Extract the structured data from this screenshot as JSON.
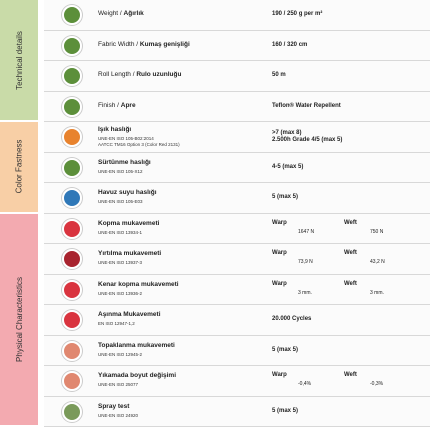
{
  "sections": [
    {
      "title": "Technical details",
      "color": "#c9dba8",
      "rows": [
        {
          "en": "Weight /",
          "tr": "Ağırlık",
          "icon_color": "#5c8f3a",
          "values": [
            "190 / 250 g per m²"
          ]
        },
        {
          "en": "Fabric Width /",
          "tr": "Kumaş genişliği",
          "icon_color": "#5c8f3a",
          "values": [
            "160 / 320 cm"
          ]
        },
        {
          "en": "Roll Length /",
          "tr": "Rulo uzunluğu",
          "icon_color": "#5c8f3a",
          "values": [
            "50 m"
          ]
        },
        {
          "en": "Finish /",
          "tr": "Apre",
          "icon_color": "#5c8f3a",
          "values": [
            "Teflon® Water Repellent"
          ]
        }
      ]
    },
    {
      "title": "Color Fastness",
      "color": "#f8cfa6",
      "rows": [
        {
          "tr": "Işık haslığı",
          "icon_color": "#e8832e",
          "standards": [
            "UNE-EN ISO 105-B02:2014",
            "AATCC TM16 Option 3 (Color Red 2131)"
          ],
          "values": [
            ">7 (max 8)",
            "2.500h Grade 4/5 (max 5)"
          ]
        },
        {
          "tr": "Sürtünme haslığı",
          "icon_color": "#5c8f3a",
          "standards": [
            "UNE-EN ISO 105-X12"
          ],
          "values": [
            "4-5 (max 5)"
          ]
        },
        {
          "tr": "Havuz suyu haslığı",
          "icon_color": "#2f78b8",
          "standards": [
            "UNE-EN ISO 105-E03"
          ],
          "values": [
            "5 (max 5)"
          ]
        }
      ]
    },
    {
      "title": "Physical Characteristics",
      "color": "#f3aab0",
      "rows": [
        {
          "tr": "Kopma mukavemeti",
          "icon_color": "#d9343f",
          "standards": [
            "UNE-EN ISO 13934-1"
          ],
          "columns": [
            {
              "head": "Warp",
              "value": "1647 N"
            },
            {
              "head": "Weft",
              "value": "750 N"
            }
          ]
        },
        {
          "tr": "Yırtılma mukavemeti",
          "icon_color": "#a8232e",
          "standards": [
            "UNE-EN ISO 13937-3"
          ],
          "columns": [
            {
              "head": "Warp",
              "value": "73,9 N"
            },
            {
              "head": "Weft",
              "value": "43,2 N"
            }
          ]
        },
        {
          "tr": "Kenar kopma mukavemeti",
          "icon_color": "#d9343f",
          "standards": [
            "UNE-EN ISO 13936-2"
          ],
          "columns": [
            {
              "head": "Warp",
              "value": "3 mm."
            },
            {
              "head": "Weft",
              "value": "3 mm."
            }
          ]
        },
        {
          "tr": "Aşınma Mukavemeti",
          "icon_color": "#d9343f",
          "standards": [
            "EN ISO 12947-1,2"
          ],
          "values": [
            "20.000 Cycles"
          ]
        },
        {
          "tr": "Topaklanma mukavemeti",
          "icon_color": "#e0876f",
          "standards": [
            "UNE-EN ISO 12945-2"
          ],
          "values": [
            "5 (max 5)"
          ]
        },
        {
          "tr": "Yıkamada boyut değişimi",
          "icon_color": "#e0876f",
          "standards": [
            "UNE-EN ISO 25077"
          ],
          "columns": [
            {
              "head": "Warp",
              "value": "-0,4%"
            },
            {
              "head": "Weft",
              "value": "-0,3%"
            }
          ]
        },
        {
          "tr": "Spray test",
          "icon_color": "#7a9a5a",
          "standards": [
            "UNE-EN ISO 24920"
          ],
          "values": [
            "5 (max 5)"
          ]
        }
      ]
    }
  ]
}
